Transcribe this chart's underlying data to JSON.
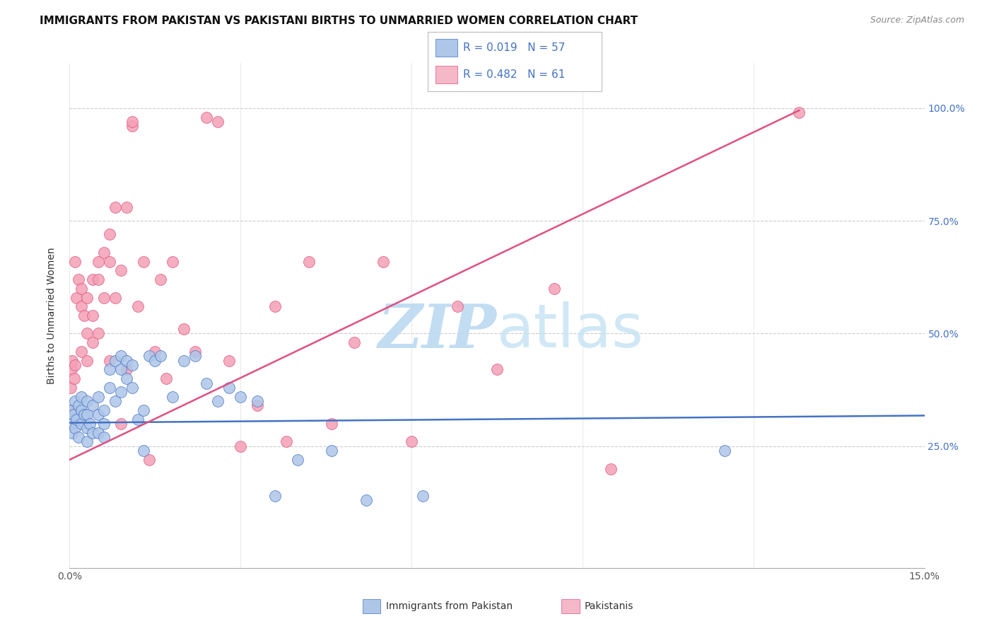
{
  "title": "IMMIGRANTS FROM PAKISTAN VS PAKISTANI BIRTHS TO UNMARRIED WOMEN CORRELATION CHART",
  "source": "Source: ZipAtlas.com",
  "ylabel": "Births to Unmarried Women",
  "xlim": [
    0.0,
    0.15
  ],
  "ylim": [
    -0.02,
    1.1
  ],
  "xticks": [
    0.0,
    0.03,
    0.06,
    0.09,
    0.12,
    0.15
  ],
  "xtick_labels": [
    "0.0%",
    "",
    "",
    "",
    "",
    "15.0%"
  ],
  "yticks_right": [
    0.25,
    0.5,
    0.75,
    1.0
  ],
  "ytick_labels_right": [
    "25.0%",
    "50.0%",
    "75.0%",
    "100.0%"
  ],
  "legend_r1": "R = 0.019",
  "legend_n1": "N = 57",
  "legend_r2": "R = 0.482",
  "legend_n2": "N = 61",
  "legend_color1": "#aec6e8",
  "legend_color2": "#f4b8c8",
  "scatter_color1": "#aec6e8",
  "scatter_color2": "#f4a0b5",
  "line_color1": "#4472c4",
  "line_color2": "#e05080",
  "watermark_zip": "ZIP",
  "watermark_atlas": "atlas",
  "watermark_color": "#d8edf8",
  "background_color": "#ffffff",
  "title_fontsize": 11,
  "source_fontsize": 9,
  "series1_x": [
    0.0002,
    0.0003,
    0.0005,
    0.0007,
    0.001,
    0.001,
    0.0012,
    0.0015,
    0.0015,
    0.002,
    0.002,
    0.002,
    0.0025,
    0.003,
    0.003,
    0.003,
    0.003,
    0.0035,
    0.004,
    0.004,
    0.005,
    0.005,
    0.005,
    0.006,
    0.006,
    0.006,
    0.007,
    0.007,
    0.008,
    0.008,
    0.009,
    0.009,
    0.009,
    0.01,
    0.01,
    0.011,
    0.011,
    0.012,
    0.013,
    0.013,
    0.014,
    0.015,
    0.016,
    0.018,
    0.02,
    0.022,
    0.024,
    0.026,
    0.028,
    0.03,
    0.033,
    0.036,
    0.04,
    0.046,
    0.052,
    0.062,
    0.115
  ],
  "series1_y": [
    0.33,
    0.3,
    0.28,
    0.32,
    0.35,
    0.29,
    0.31,
    0.34,
    0.27,
    0.33,
    0.3,
    0.36,
    0.32,
    0.35,
    0.29,
    0.32,
    0.26,
    0.3,
    0.34,
    0.28,
    0.36,
    0.28,
    0.32,
    0.33,
    0.27,
    0.3,
    0.42,
    0.38,
    0.44,
    0.35,
    0.42,
    0.45,
    0.37,
    0.44,
    0.4,
    0.43,
    0.38,
    0.31,
    0.33,
    0.24,
    0.45,
    0.44,
    0.45,
    0.36,
    0.44,
    0.45,
    0.39,
    0.35,
    0.38,
    0.36,
    0.35,
    0.14,
    0.22,
    0.24,
    0.13,
    0.14,
    0.24
  ],
  "series2_x": [
    0.0001,
    0.0002,
    0.0003,
    0.0005,
    0.0008,
    0.001,
    0.001,
    0.0012,
    0.0015,
    0.002,
    0.002,
    0.002,
    0.0025,
    0.003,
    0.003,
    0.003,
    0.004,
    0.004,
    0.004,
    0.005,
    0.005,
    0.005,
    0.006,
    0.006,
    0.007,
    0.007,
    0.007,
    0.008,
    0.008,
    0.009,
    0.009,
    0.01,
    0.01,
    0.011,
    0.011,
    0.012,
    0.013,
    0.014,
    0.015,
    0.016,
    0.017,
    0.018,
    0.02,
    0.022,
    0.024,
    0.026,
    0.028,
    0.03,
    0.033,
    0.036,
    0.038,
    0.042,
    0.046,
    0.05,
    0.055,
    0.06,
    0.068,
    0.075,
    0.085,
    0.095,
    0.128
  ],
  "series2_y": [
    0.33,
    0.38,
    0.42,
    0.44,
    0.4,
    0.43,
    0.66,
    0.58,
    0.62,
    0.6,
    0.56,
    0.46,
    0.54,
    0.44,
    0.5,
    0.58,
    0.48,
    0.54,
    0.62,
    0.5,
    0.62,
    0.66,
    0.68,
    0.58,
    0.44,
    0.72,
    0.66,
    0.78,
    0.58,
    0.3,
    0.64,
    0.42,
    0.78,
    0.96,
    0.97,
    0.56,
    0.66,
    0.22,
    0.46,
    0.62,
    0.4,
    0.66,
    0.51,
    0.46,
    0.98,
    0.97,
    0.44,
    0.25,
    0.34,
    0.56,
    0.26,
    0.66,
    0.3,
    0.48,
    0.66,
    0.26,
    0.56,
    0.42,
    0.6,
    0.2,
    0.99
  ],
  "blue_line_x": [
    0.0,
    0.15
  ],
  "blue_line_y": [
    0.302,
    0.318
  ],
  "pink_line_x": [
    0.0,
    0.128
  ],
  "pink_line_y": [
    0.22,
    0.995
  ]
}
